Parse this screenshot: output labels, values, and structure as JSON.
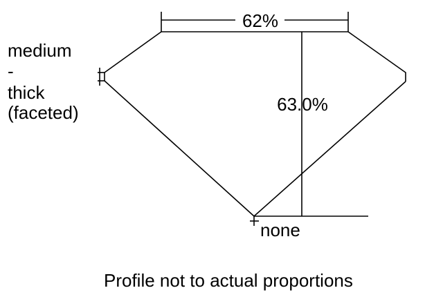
{
  "diagram": {
    "table_percent": "62%",
    "depth_percent": "63.0%",
    "girdle_label": [
      "medium",
      "-",
      "thick",
      "(faceted)"
    ],
    "culet_label": "none",
    "caption": "Profile not to actual proportions",
    "line_color": "#000000",
    "background": "#ffffff"
  }
}
